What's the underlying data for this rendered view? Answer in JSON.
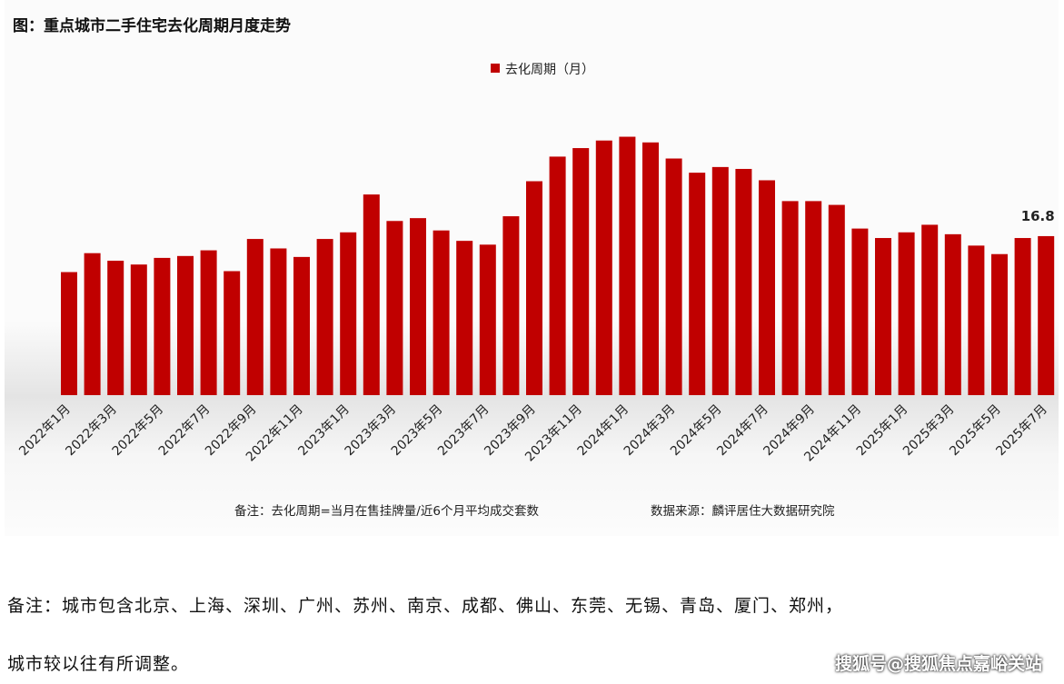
{
  "chart_data": {
    "type": "bar",
    "title": "图：重点城市二手住宅去化周期月度走势",
    "legend": {
      "position": "top",
      "entries": [
        "去化周期（月）"
      ]
    },
    "series": [
      {
        "name": "去化周期（月）",
        "color": "#c00000",
        "values": [
          13.0,
          15.0,
          14.2,
          13.8,
          14.5,
          14.7,
          15.3,
          13.1,
          16.5,
          15.5,
          14.6,
          16.5,
          17.2,
          21.2,
          18.4,
          18.7,
          17.4,
          16.3,
          15.9,
          18.9,
          22.6,
          25.2,
          26.1,
          26.9,
          27.3,
          26.7,
          25.0,
          23.5,
          24.1,
          23.9,
          22.7,
          20.5,
          20.5,
          20.1,
          17.6,
          16.6,
          17.2,
          18.0,
          17.0,
          15.8,
          14.9,
          16.6,
          16.8
        ]
      }
    ],
    "tick_labels": [
      "2022年1月",
      "2022年3月",
      "2022年5月",
      "2022年7月",
      "2022年9月",
      "2022年11月",
      "2023年1月",
      "2023年3月",
      "2023年5月",
      "2023年7月",
      "2023年9月",
      "2023年11月",
      "2024年1月",
      "2024年3月",
      "2024年5月",
      "2024年7月",
      "2024年9月",
      "2024年11月",
      "2025年1月",
      "2025年3月",
      "2025年5月",
      "2025年7月"
    ],
    "data_labels": [
      {
        "index": 42,
        "text": "16.8"
      }
    ],
    "ylim": [
      0,
      30
    ],
    "grid": false,
    "y_axis_visible": false
  },
  "chart_note": "备注：去化周期=当月在售挂牌量/近6个月平均成交套数",
  "chart_source": "数据来源：麟评居住大数据研究院",
  "footer": {
    "line1": "备注：城市包含北京、上海、深圳、广州、苏州、南京、成都、佛山、东莞、无锡、青岛、厦门、郑州，",
    "line2": "城市较以往有所调整。"
  },
  "watermark": "搜狐号@搜狐焦点嘉峪关站"
}
